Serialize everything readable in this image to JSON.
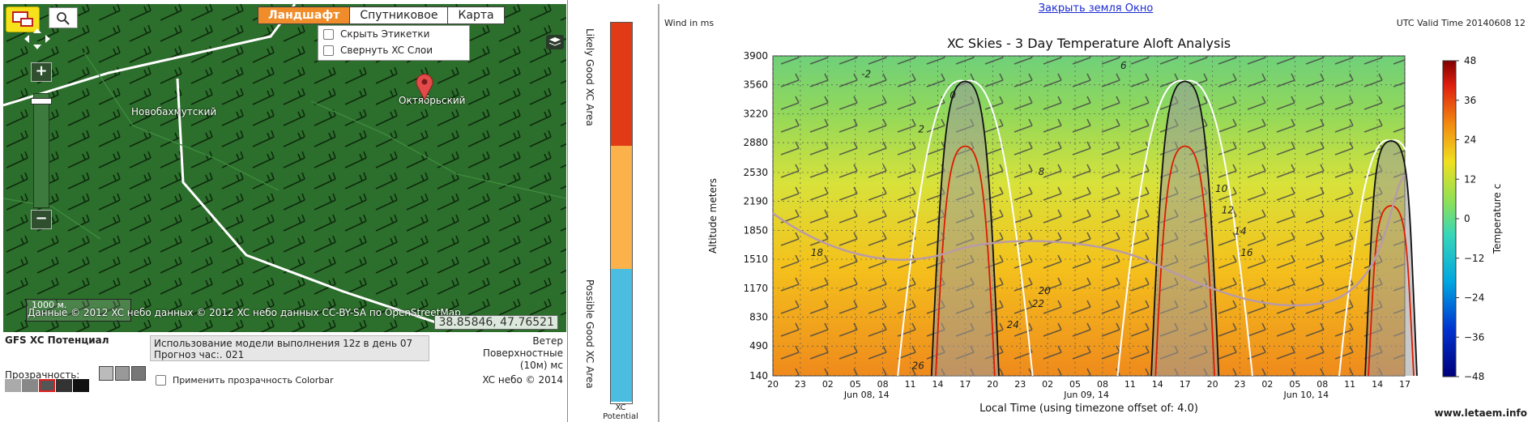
{
  "map": {
    "tabs": [
      {
        "label": "Ландшафт",
        "active": true
      },
      {
        "label": "Спутниковое",
        "active": false
      },
      {
        "label": "Карта",
        "active": false
      }
    ],
    "layer_options": [
      "Скрыть Этикетки",
      "Свернуть XC Слои"
    ],
    "places": [
      {
        "name": "Новобахмутский"
      },
      {
        "name": "Октябрьский"
      }
    ],
    "scale_label": "1000 м.",
    "attribution": "Данные © 2012 XC небо данных © 2012 XC небо данных CC-BY-SA по OpenStreetMap",
    "coordinates": "38.85846, 47.76521",
    "zoom_in": "+",
    "zoom_out": "−"
  },
  "controls": {
    "title": "GFS XC Потенциал",
    "model_info": "Использование модели выполнения 12z в день 07 Прогноз час:. 021",
    "wind_label": "Ветер Поверхностные (10м) мс",
    "transparency_label": "Прозрачность:",
    "apply_colorbar_label": "Применить прозрачность Colorbar",
    "copyright": "XC небо © 2014"
  },
  "legend": {
    "top_label": "Likely Good XC Area",
    "bottom_label": "Possible Good XC Area",
    "footer": "XC Potential",
    "colors": [
      "#e03a16",
      "#fbb24a",
      "#4bbde0"
    ]
  },
  "plot": {
    "close_link": "Закрыть земля Окно",
    "wind_units": "Wind in ms",
    "valid_time": "UTC Valid Time 20140608 12",
    "watermark": "www.letaem.info"
  },
  "chart_data": {
    "type": "heatmap",
    "title": "XC Skies - 3 Day Temperature Aloft Analysis",
    "xlabel": "Local Time (using timezone offset of: 4.0)",
    "ylabel": "Altitude meters",
    "colorbar_label": "Temperature c",
    "y_ticks": [
      140,
      490,
      830,
      1170,
      1510,
      1850,
      2190,
      2530,
      2880,
      3220,
      3560,
      3900
    ],
    "ylim": [
      140,
      3900
    ],
    "x_ticks": [
      "20",
      "23",
      "02",
      "05",
      "08",
      "11",
      "14",
      "17",
      "20",
      "23",
      "02",
      "05",
      "08",
      "11",
      "14",
      "17",
      "20",
      "23",
      "02",
      "05",
      "08",
      "11",
      "14",
      "17"
    ],
    "date_labels": [
      {
        "label": "Jun 08, 14",
        "tick_index": 3
      },
      {
        "label": "Jun 09, 14",
        "tick_index": 11
      },
      {
        "label": "Jun 10, 14",
        "tick_index": 19
      }
    ],
    "colorbar_ticks": [
      48,
      36,
      24,
      12,
      0,
      -12,
      -24,
      -36,
      -48
    ],
    "colorbar_range": [
      -48,
      48
    ],
    "contour_labels": [
      "-2",
      "0",
      "2",
      "6",
      "8",
      "10",
      "12",
      "14",
      "16",
      "18",
      "20",
      "22",
      "24",
      "26"
    ],
    "colors": {
      "thermal_top": "#111111",
      "thermal_height": "#dd1a00",
      "cloud_band": "#9a9a9a",
      "boundary": "#ffffff",
      "dewpoint": "#b99aa8"
    }
  }
}
